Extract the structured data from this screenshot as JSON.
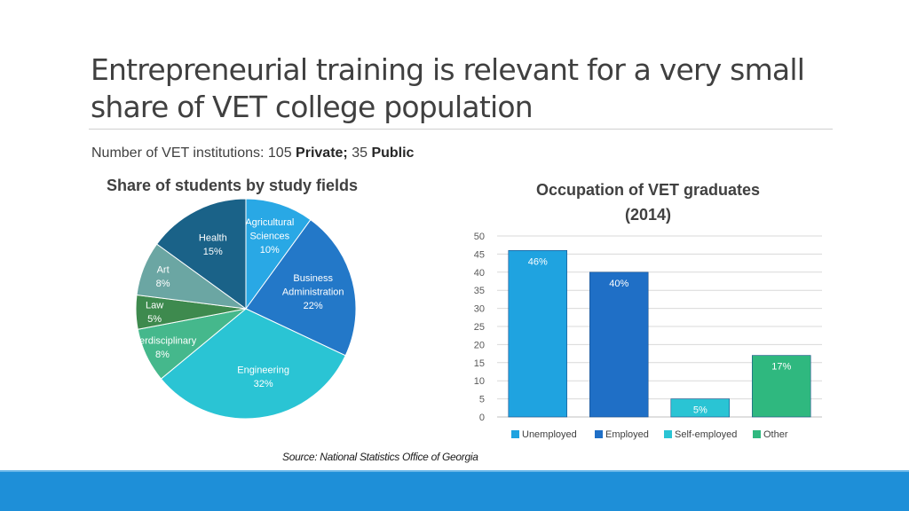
{
  "slide": {
    "title": "Entrepreneurial training is relevant for a very small share of VET college population",
    "subline": {
      "prefix": "Number of VET institutions: 105 ",
      "private_label": "Private;",
      "middle": " 35 ",
      "public_label": "Public"
    },
    "source": "Source: National Statistics Office of Georgia"
  },
  "chart_data": [
    {
      "type": "pie",
      "title": "Share of students by study fields",
      "slices": [
        {
          "label": [
            "Agricultural",
            "Sciences"
          ],
          "value": 10,
          "value_label": "10%",
          "color": "#29a8e5"
        },
        {
          "label": [
            "Business",
            "Administration"
          ],
          "value": 22,
          "value_label": "22%",
          "color": "#2378c8"
        },
        {
          "label": [
            "Engineering"
          ],
          "value": 32,
          "value_label": "32%",
          "color": "#2ac4d4"
        },
        {
          "label": [
            "Interdisciplinary"
          ],
          "value": 8,
          "value_label": "8%",
          "color": "#45b88c"
        },
        {
          "label": [
            "Law"
          ],
          "value": 5,
          "value_label": "5%",
          "color": "#3e8a4e"
        },
        {
          "label": [
            "Art"
          ],
          "value": 8,
          "value_label": "8%",
          "color": "#6ba6a3"
        },
        {
          "label": [
            "Health"
          ],
          "value": 15,
          "value_label": "15%",
          "color": "#1a6288"
        }
      ]
    },
    {
      "type": "bar",
      "title": [
        "Occupation of VET graduates",
        "(2014)"
      ],
      "categories": [
        "Unemployed",
        "Employed",
        "Self-employed",
        "Other"
      ],
      "values": [
        46,
        40,
        5,
        17
      ],
      "value_labels": [
        "46%",
        "40%",
        "5%",
        "17%"
      ],
      "colors": [
        "#1fa3e0",
        "#1f6fc6",
        "#2ac4d4",
        "#2fb87f"
      ],
      "ylim": [
        0,
        50
      ],
      "yticks": [
        0,
        5,
        10,
        15,
        20,
        25,
        30,
        35,
        40,
        45,
        50
      ],
      "grid": true,
      "legend": "bottom"
    }
  ]
}
